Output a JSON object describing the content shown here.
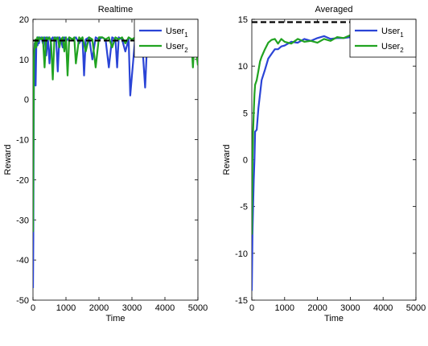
{
  "chart_data": [
    {
      "type": "line",
      "title": "Realtime",
      "xlabel": "Time",
      "ylabel": "Reward",
      "xlim": [
        0,
        5000
      ],
      "ylim": [
        -50,
        20
      ],
      "xticks": [
        0,
        1000,
        2000,
        3000,
        4000,
        5000
      ],
      "yticks": [
        -50,
        -40,
        -30,
        -20,
        -10,
        0,
        10,
        20
      ],
      "grid": false,
      "legend_position": "top-right",
      "reference_line": {
        "y": 14.7,
        "style": "dashed",
        "color": "#000000"
      },
      "series": [
        {
          "name": "User",
          "subscript": "1",
          "color": "#2a44d6",
          "x": [
            0,
            10,
            20,
            30,
            40,
            50,
            60,
            80,
            100,
            120,
            140,
            160,
            180,
            200,
            250,
            300,
            350,
            400,
            450,
            500,
            550,
            600,
            650,
            700,
            750,
            800,
            850,
            900,
            950,
            1000,
            1100,
            1200,
            1300,
            1400,
            1500,
            1550,
            1600,
            1700,
            1800,
            1900,
            2000,
            2100,
            2200,
            2300,
            2400,
            2500,
            2550,
            2600,
            2700,
            2800,
            2900,
            2950,
            3000,
            3100,
            3200,
            3300,
            3400,
            3450,
            3500,
            3600,
            3700,
            3800,
            3900,
            4000,
            4100,
            4200,
            4300,
            4400,
            4500,
            4600,
            4700,
            4800,
            4900,
            5000
          ],
          "y": [
            -47,
            -35,
            -12,
            5,
            12,
            14,
            13,
            3.5,
            13,
            15,
            13.5,
            15.5,
            14,
            15,
            15.5,
            14,
            15.5,
            11,
            15.5,
            9,
            15,
            15.5,
            14.5,
            15.5,
            7,
            15.5,
            15,
            13,
            15.5,
            14.5,
            15.5,
            15,
            15.5,
            14,
            15.5,
            6,
            15,
            15.5,
            10,
            15.5,
            15,
            15.5,
            15,
            8,
            15.5,
            15,
            8,
            15.5,
            15,
            12,
            15,
            1,
            6,
            15.5,
            15,
            15.5,
            3,
            12,
            15.5,
            13,
            15.5,
            15,
            15.5,
            14.5,
            15.5,
            11,
            15,
            15.5,
            15,
            15.5,
            15,
            14.5,
            15.5,
            10
          ]
        },
        {
          "name": "User",
          "subscript": "2",
          "color": "#21a321",
          "x": [
            0,
            10,
            20,
            30,
            40,
            60,
            80,
            100,
            130,
            160,
            200,
            250,
            300,
            350,
            400,
            450,
            500,
            550,
            600,
            650,
            700,
            750,
            800,
            850,
            900,
            950,
            1000,
            1050,
            1100,
            1200,
            1250,
            1300,
            1400,
            1450,
            1500,
            1600,
            1700,
            1800,
            1900,
            2000,
            2100,
            2200,
            2300,
            2400,
            2500,
            2600,
            2700,
            2800,
            2900,
            3000,
            3100,
            3200,
            3300,
            3400,
            3500,
            3600,
            3700,
            3800,
            3900,
            4000,
            4100,
            4200,
            4300,
            4400,
            4500,
            4600,
            4700,
            4800,
            4850,
            4900,
            5000
          ],
          "y": [
            -33,
            -15,
            0,
            10,
            12,
            14,
            15,
            13,
            15.5,
            14.5,
            15.5,
            15,
            15.5,
            8,
            15.5,
            15,
            15.5,
            14,
            5,
            15.5,
            15,
            15.5,
            13,
            15,
            15.5,
            12,
            15.5,
            6,
            15.5,
            15,
            15.5,
            9,
            15.5,
            15,
            15.5,
            12,
            15.5,
            15,
            8,
            15.5,
            15.5,
            15,
            15.5,
            13,
            15.5,
            15,
            15.5,
            14,
            15.5,
            15,
            15.5,
            12,
            15.5,
            15.5,
            15,
            15.5,
            13,
            15.5,
            15,
            15.5,
            11,
            15.5,
            15.5,
            15,
            15.5,
            14,
            15.5,
            15,
            8,
            15.5,
            8.5
          ]
        }
      ]
    },
    {
      "type": "line",
      "title": "Averaged",
      "xlabel": "Time",
      "ylabel": "Reward",
      "xlim": [
        0,
        5000
      ],
      "ylim": [
        -15,
        15
      ],
      "xticks": [
        0,
        1000,
        2000,
        3000,
        4000,
        5000
      ],
      "yticks": [
        -15,
        -10,
        -5,
        0,
        5,
        10,
        15
      ],
      "grid": false,
      "legend_position": "top-right",
      "reference_line": {
        "y": 14.7,
        "style": "dashed",
        "color": "#000000"
      },
      "series": [
        {
          "name": "User",
          "subscript": "1",
          "color": "#2a44d6",
          "x": [
            0,
            20,
            40,
            60,
            80,
            100,
            150,
            200,
            250,
            300,
            400,
            500,
            600,
            700,
            800,
            900,
            1000,
            1200,
            1400,
            1600,
            1800,
            2000,
            2200,
            2400,
            2600,
            2800,
            3000,
            3200,
            3400,
            3600,
            3800,
            4000,
            4200,
            4400,
            4600,
            4800,
            5000
          ],
          "y": [
            -14,
            -8,
            -5,
            -2.2,
            0,
            3,
            3.2,
            5.5,
            7,
            8.5,
            9.6,
            10.8,
            11.3,
            11.8,
            11.8,
            12.1,
            12.2,
            12.6,
            12.5,
            12.9,
            12.7,
            13,
            13.2,
            12.9,
            13,
            13,
            13.1,
            12.6,
            12.9,
            13.1,
            12.8,
            12.9,
            13.1,
            12.8,
            12.9,
            13,
            12.7
          ]
        },
        {
          "name": "User",
          "subscript": "2",
          "color": "#21a321",
          "x": [
            0,
            20,
            40,
            60,
            80,
            100,
            150,
            200,
            250,
            300,
            400,
            500,
            600,
            700,
            800,
            900,
            1000,
            1200,
            1400,
            1600,
            1800,
            2000,
            2200,
            2400,
            2600,
            2800,
            3000,
            3200,
            3400,
            3600,
            3800,
            4000,
            4200,
            4400,
            4600,
            4800,
            5000
          ],
          "y": [
            -8,
            0,
            3,
            5,
            7,
            8,
            8.5,
            9.5,
            10.5,
            11,
            11.8,
            12.5,
            12.8,
            12.9,
            12.4,
            12.9,
            12.6,
            12.4,
            12.9,
            12.6,
            12.7,
            12.5,
            12.9,
            12.7,
            13.1,
            13,
            13.3,
            13.1,
            13,
            13.1,
            12.9,
            13.1,
            12.9,
            13,
            12.9,
            12.8,
            12.9
          ]
        }
      ]
    }
  ]
}
